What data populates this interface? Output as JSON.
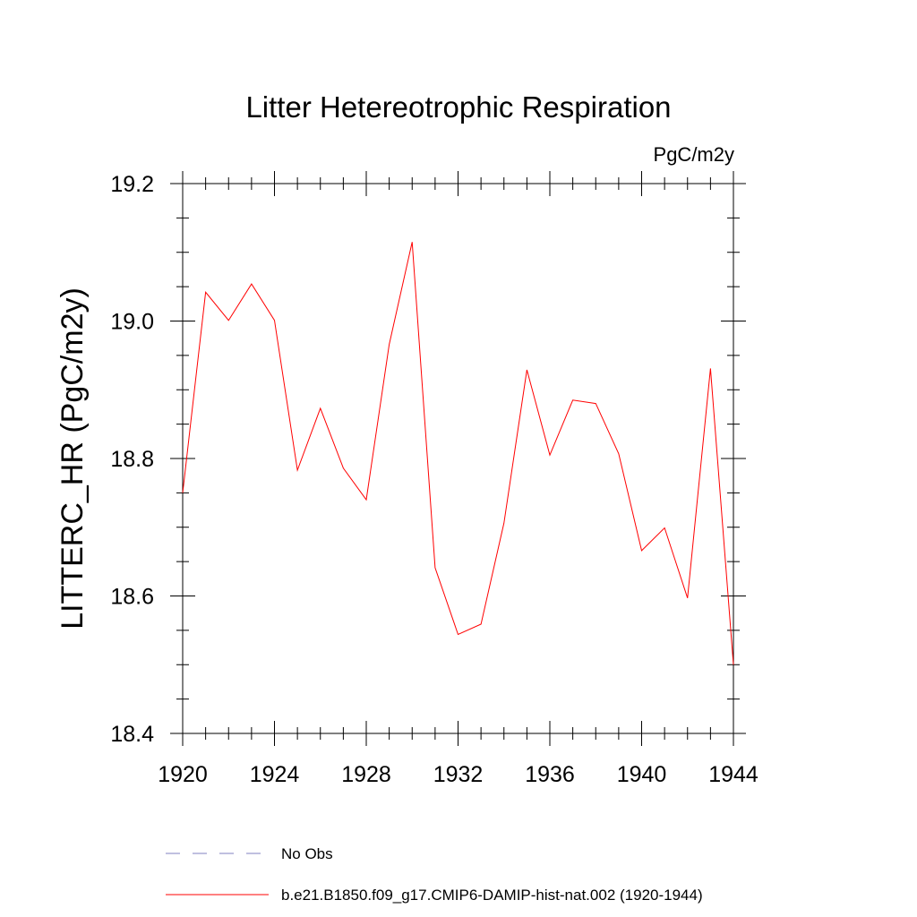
{
  "chart_data": {
    "type": "line",
    "title": "Litter Hetereotrophic Respiration",
    "units_label": "PgC/m2y",
    "ylabel": "LITTERC_HR  (PgC/m2y)",
    "xlabel": "",
    "xlim": [
      1920,
      1944
    ],
    "ylim": [
      18.4,
      19.2
    ],
    "x_ticks": [
      "1920",
      "1924",
      "1928",
      "1932",
      "1936",
      "1940",
      "1944"
    ],
    "y_ticks": [
      "18.4",
      "18.6",
      "18.8",
      "19.0",
      "19.2"
    ],
    "series": [
      {
        "name": "b.e21.B1850.f09_g17.CMIP6-DAMIP-hist-nat.002 (1920-1944)",
        "color": "#ff0000",
        "style": "solid",
        "x": [
          1920,
          1921,
          1922,
          1923,
          1924,
          1925,
          1926,
          1927,
          1928,
          1929,
          1930,
          1931,
          1932,
          1933,
          1934,
          1935,
          1936,
          1937,
          1938,
          1939,
          1940,
          1941,
          1942,
          1943,
          1944
        ],
        "y": [
          18.75,
          19.042,
          19.001,
          19.054,
          19.001,
          18.783,
          18.873,
          18.786,
          18.74,
          18.966,
          19.115,
          18.641,
          18.544,
          18.559,
          18.706,
          18.929,
          18.805,
          18.885,
          18.88,
          18.807,
          18.666,
          18.699,
          18.597,
          18.931,
          18.5
        ]
      }
    ],
    "legend": {
      "position": "bottom",
      "entries": [
        {
          "label": "No Obs",
          "color": "#8080c0",
          "style": "dashed"
        },
        {
          "label": "b.e21.B1850.f09_g17.CMIP6-DAMIP-hist-nat.002 (1920-1944)",
          "color": "#ff0000",
          "style": "solid"
        }
      ]
    },
    "grid": false
  }
}
